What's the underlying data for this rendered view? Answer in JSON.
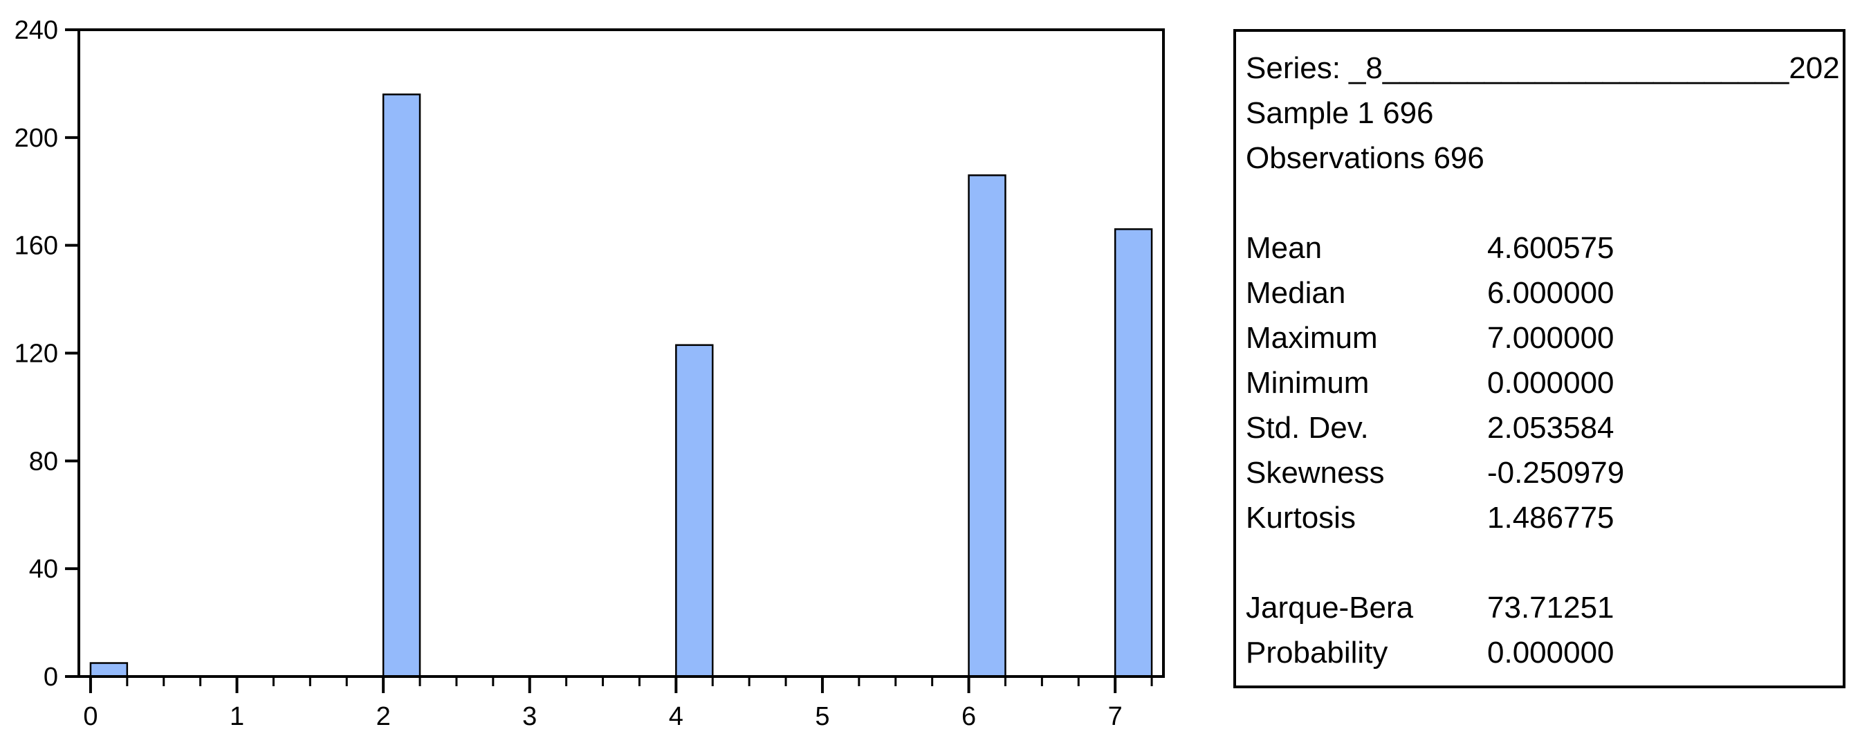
{
  "chart_data": {
    "type": "bar",
    "title": "",
    "xlabel": "",
    "ylabel": "",
    "x": [
      0,
      2,
      4,
      6,
      7
    ],
    "values": [
      5,
      216,
      123,
      186,
      166
    ],
    "bar_width_units": 0.25,
    "xlim": [
      -0.08,
      7.33
    ],
    "ylim": [
      0,
      240
    ],
    "y_ticks": [
      0,
      40,
      80,
      120,
      160,
      200,
      240
    ],
    "x_major_ticks": [
      0,
      1,
      2,
      3,
      4,
      5,
      6,
      7
    ],
    "x_minor_step": 0.25,
    "grid": "off",
    "bar_color": "#94BAFB",
    "bar_border_color": "#000000",
    "axis_color": "#000000"
  },
  "stats_panel": {
    "series_label": "Series:",
    "series_name": "_8________________________202",
    "sample_line": "Sample 1 696",
    "observations_line": "Observations 696",
    "rows": [
      {
        "label": "Mean",
        "value": "4.600575"
      },
      {
        "label": "Median",
        "value": "6.000000"
      },
      {
        "label": "Maximum",
        "value": "7.000000"
      },
      {
        "label": "Minimum",
        "value": "0.000000"
      },
      {
        "label": "Std. Dev.",
        "value": "2.053584"
      },
      {
        "label": "Skewness",
        "value": "-0.250979"
      },
      {
        "label": "Kurtosis",
        "value": "1.486775"
      }
    ],
    "test_rows": [
      {
        "label": "Jarque-Bera",
        "value": "73.71251"
      },
      {
        "label": "Probability",
        "value": "0.000000"
      }
    ]
  }
}
